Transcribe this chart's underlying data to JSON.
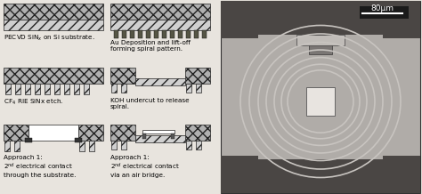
{
  "bg_color": "#e8e4de",
  "labels": [
    "PECVD SiN$_x$ on Si substrate.",
    "CF$_4$ RIE SiNx etch.",
    "Approach 1:\n2$^{nd}$ electrical contact\nthrough the substrate.",
    "Au Deposition and lift-off\nforming spiral pattern.",
    "KOH undercut to release\nspiral.",
    "Approach 1:\n2$^{nd}$ electrical contact\nvia an air bridge."
  ],
  "scale_bar_label": "80μm",
  "substrate_hatch_color": "#777777",
  "sinx_color": "#aaaaaa",
  "substrate_color": "#999999",
  "metal_color": "#333333",
  "white_color": "#f0f0f0",
  "sem_bg": "#b0aca8",
  "sem_dark": "#4a4644",
  "sem_mid": "#7a7674",
  "sem_light": "#d0ccc8",
  "sem_spiral": "#c8c4c0"
}
